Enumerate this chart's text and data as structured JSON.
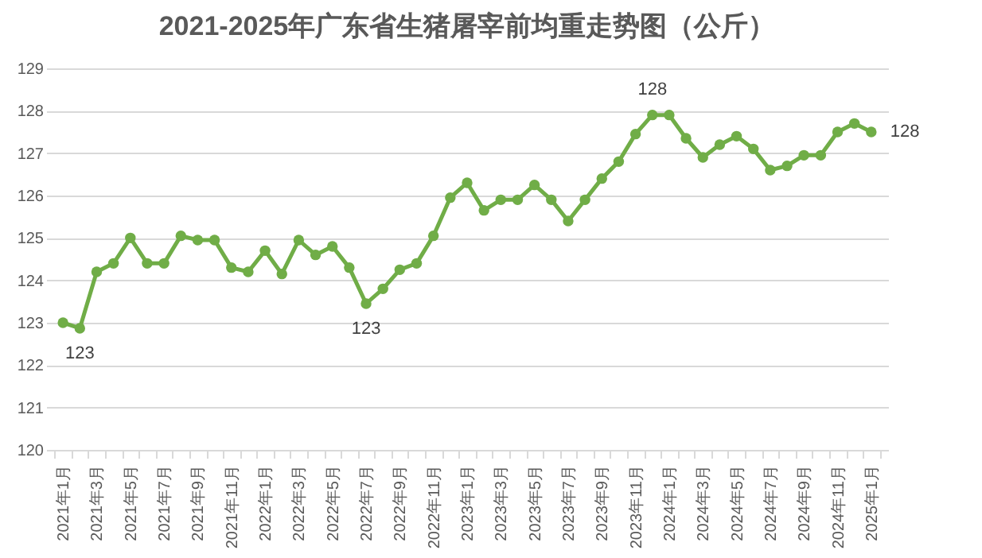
{
  "chart_data": {
    "type": "line",
    "title": "2021-2025年广东省生猪屠宰前均重走势图（公斤）",
    "categories": [
      "2021年1月",
      null,
      "2021年3月",
      null,
      "2021年5月",
      null,
      "2021年7月",
      null,
      "2021年9月",
      null,
      "2021年11月",
      null,
      "2022年1月",
      null,
      "2022年3月",
      null,
      "2022年5月",
      null,
      "2022年7月",
      null,
      "2022年9月",
      null,
      "2022年11月",
      null,
      "2023年1月",
      null,
      "2023年3月",
      null,
      "2023年5月",
      null,
      "2023年7月",
      null,
      "2023年9月",
      null,
      "2023年11月",
      null,
      "2024年1月",
      null,
      "2024年3月",
      null,
      "2024年5月",
      null,
      "2024年7月",
      null,
      "2024年9月",
      null,
      "2024年11月",
      null,
      "2025年1月"
    ],
    "series": [
      {
        "color": "#70ad47",
        "values": [
          123.0,
          122.87,
          124.2,
          124.4,
          125.0,
          124.4,
          124.4,
          125.05,
          124.95,
          124.95,
          124.3,
          124.2,
          124.7,
          124.15,
          124.95,
          124.6,
          124.8,
          124.3,
          123.45,
          123.8,
          124.25,
          124.4,
          125.05,
          125.95,
          126.3,
          125.65,
          125.9,
          125.9,
          126.25,
          125.9,
          125.4,
          125.9,
          126.4,
          126.8,
          127.45,
          127.9,
          127.9,
          127.35,
          126.9,
          127.2,
          127.4,
          127.1,
          126.6,
          126.7,
          126.95,
          126.95,
          127.5,
          127.7,
          127.5
        ],
        "value_labels": [
          null,
          "123",
          null,
          null,
          null,
          null,
          null,
          null,
          null,
          null,
          null,
          null,
          null,
          null,
          null,
          null,
          null,
          null,
          "123",
          null,
          null,
          null,
          null,
          null,
          null,
          null,
          null,
          null,
          null,
          null,
          null,
          null,
          null,
          null,
          null,
          "128",
          null,
          null,
          null,
          null,
          null,
          null,
          null,
          null,
          null,
          null,
          null,
          null,
          "128"
        ]
      }
    ],
    "ylim": [
      120,
      129
    ],
    "yticks": [
      120,
      121,
      122,
      123,
      124,
      125,
      126,
      127,
      128,
      129
    ],
    "grid": "y",
    "marker": "circle",
    "line_style": "solid"
  }
}
